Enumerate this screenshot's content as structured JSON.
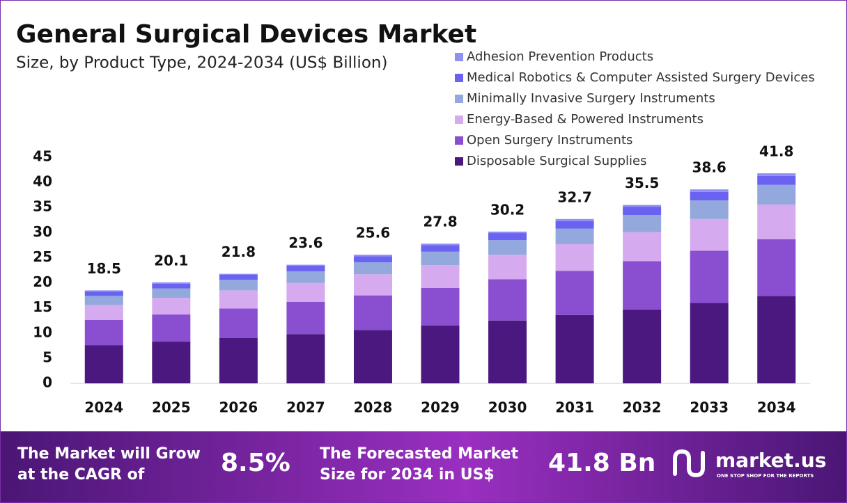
{
  "chart_data": {
    "type": "stacked_bar",
    "title": "General Surgical Devices Market",
    "subtitle": "Size, by Product Type, 2024-2034 (US$ Billion)",
    "categories": [
      "2024",
      "2025",
      "2026",
      "2027",
      "2028",
      "2029",
      "2030",
      "2031",
      "2032",
      "2033",
      "2034"
    ],
    "series": [
      {
        "name": "Disposable Surgical Supplies",
        "color": "#4b1880",
        "values": [
          7.6,
          8.3,
          9.0,
          9.8,
          10.6,
          11.5,
          12.5,
          13.6,
          14.7,
          16.0,
          17.4
        ]
      },
      {
        "name": "Open Surgery Instruments",
        "color": "#8a4fd0",
        "values": [
          5.0,
          5.4,
          5.9,
          6.4,
          6.9,
          7.5,
          8.2,
          8.8,
          9.6,
          10.4,
          11.3
        ]
      },
      {
        "name": "Energy-Based & Powered Instruments",
        "color": "#d6aaee",
        "values": [
          3.0,
          3.3,
          3.6,
          3.8,
          4.2,
          4.5,
          4.9,
          5.3,
          5.8,
          6.3,
          6.9
        ]
      },
      {
        "name": "Minimally Invasive Surgery Instruments",
        "color": "#93a8dc",
        "values": [
          1.8,
          1.9,
          2.1,
          2.3,
          2.4,
          2.7,
          2.9,
          3.1,
          3.4,
          3.7,
          3.9
        ]
      },
      {
        "name": "Medical Robotics & Computer Assisted Surgery Devices",
        "color": "#6a62f0",
        "values": [
          0.9,
          0.9,
          1.0,
          1.1,
          1.2,
          1.3,
          1.4,
          1.5,
          1.6,
          1.7,
          1.8
        ]
      },
      {
        "name": "Adhesion Prevention Products",
        "color": "#8f90f4",
        "values": [
          0.2,
          0.3,
          0.2,
          0.2,
          0.3,
          0.3,
          0.3,
          0.4,
          0.4,
          0.5,
          0.5
        ]
      }
    ],
    "totals": [
      18.5,
      20.1,
      21.8,
      23.6,
      25.6,
      27.8,
      30.2,
      32.7,
      35.5,
      38.6,
      41.8
    ],
    "ylim": [
      0,
      45
    ],
    "yticks": [
      0,
      5,
      10,
      15,
      20,
      25,
      30,
      35,
      40,
      45
    ],
    "grid": false
  },
  "footer": {
    "cagr_label": [
      "The Market will Grow",
      "at the CAGR of"
    ],
    "cagr": "8.5%",
    "forecast_label": [
      "The Forecasted Market",
      "Size for 2034 in US$"
    ],
    "forecast": "41.8 Bn",
    "brand": "market.us",
    "tagline": "ONE STOP SHOP FOR THE REPORTS"
  }
}
